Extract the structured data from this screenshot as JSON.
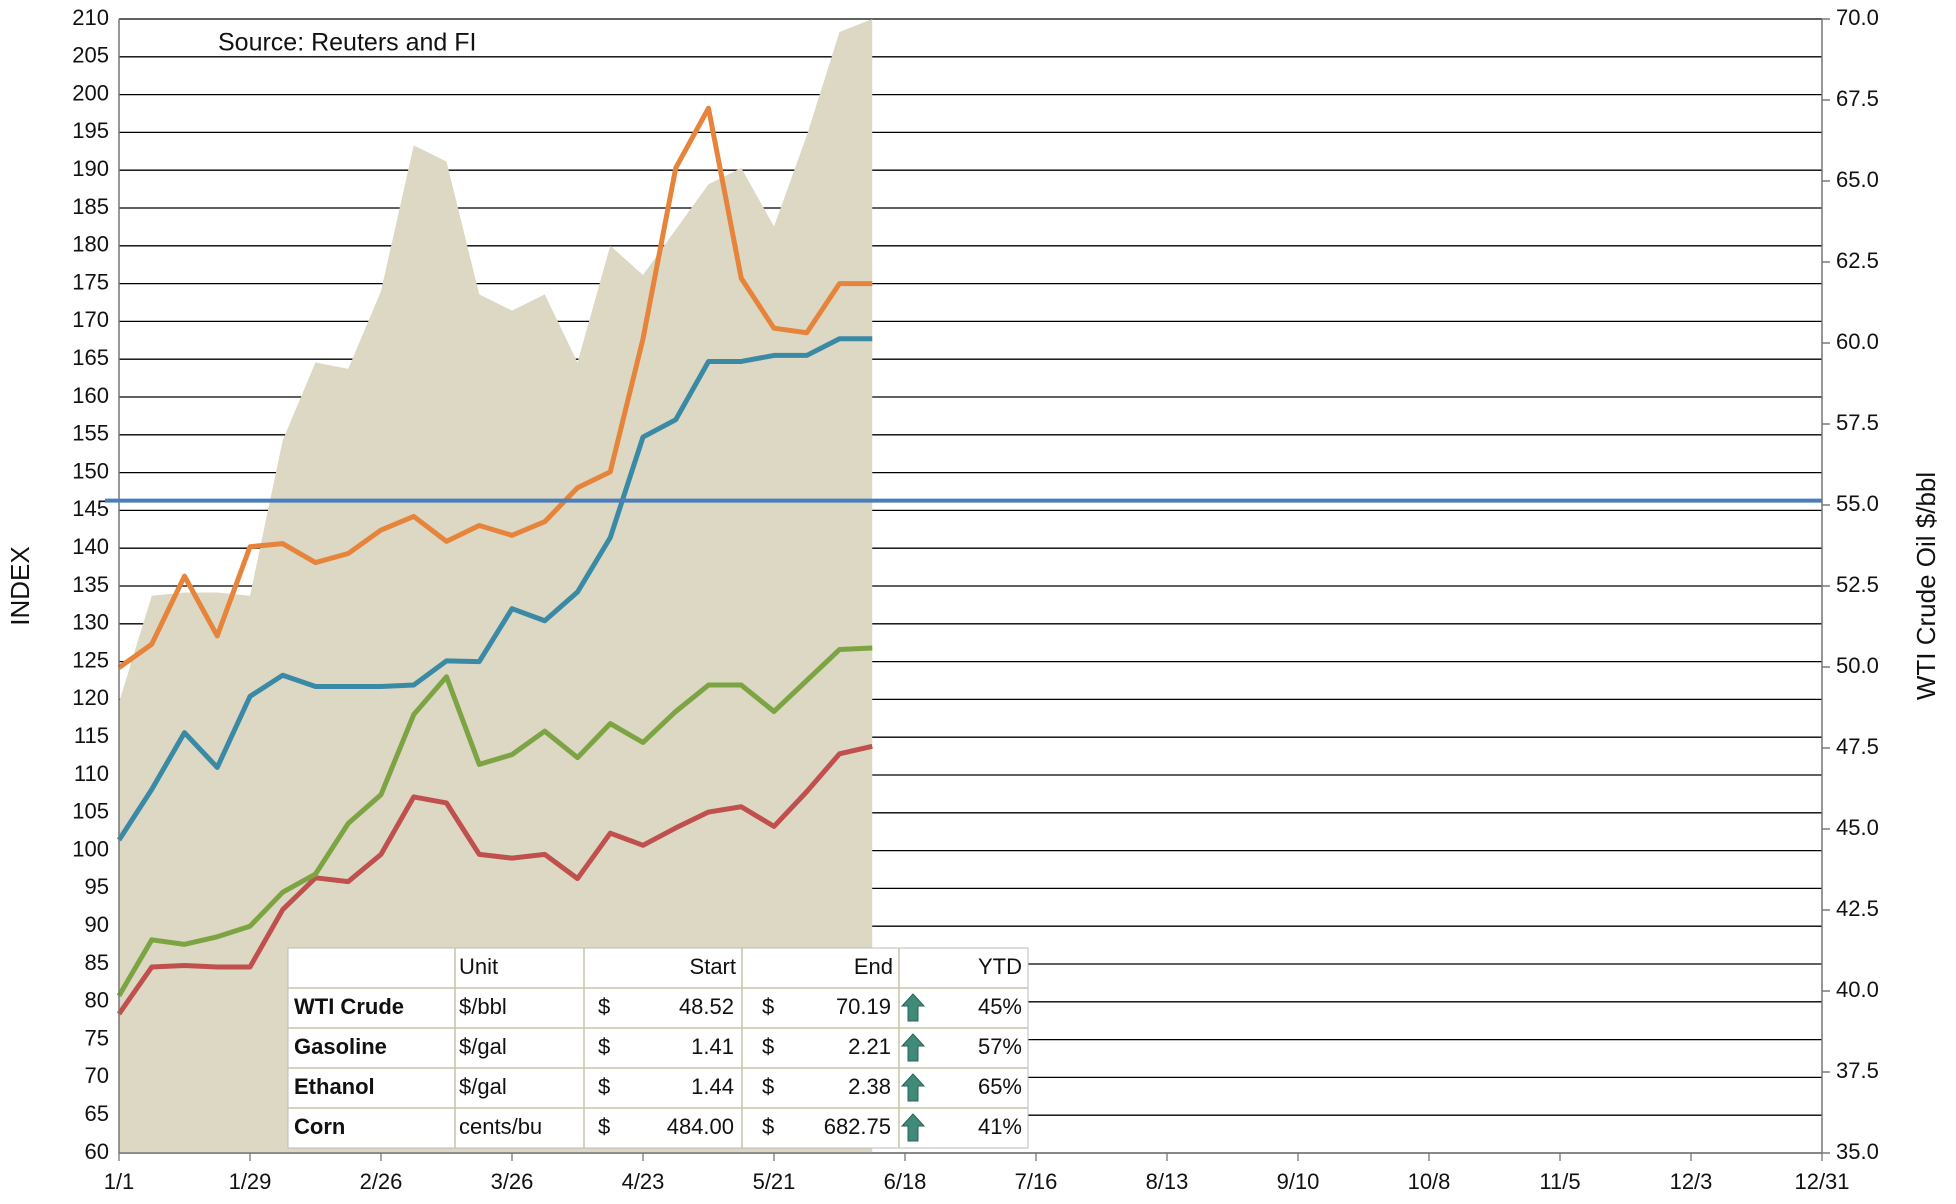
{
  "chart_data": {
    "type": "line",
    "annotation": "Source: Reuters and FI",
    "ylabel": "INDEX",
    "y2label": "WTI Crude Oil $/bbl",
    "categories": [
      "1/1",
      null,
      null,
      null,
      "1/29",
      null,
      null,
      null,
      "2/26",
      null,
      null,
      null,
      "3/26",
      null,
      null,
      null,
      "4/23",
      null,
      null,
      null,
      "5/21",
      null,
      null,
      null,
      "6/18",
      null,
      null,
      null,
      "7/16",
      null,
      null,
      null,
      "8/13",
      null,
      null,
      null,
      "9/10",
      null,
      null,
      null,
      "10/8",
      null,
      null,
      null,
      "11/5",
      null,
      null,
      null,
      "12/3",
      null,
      null,
      null,
      "12/31"
    ],
    "ylim": [
      60,
      210
    ],
    "yticks": [
      60,
      65,
      70,
      75,
      80,
      85,
      90,
      95,
      100,
      105,
      110,
      115,
      120,
      125,
      130,
      135,
      140,
      145,
      150,
      155,
      160,
      165,
      170,
      175,
      180,
      185,
      190,
      195,
      200,
      205,
      210
    ],
    "y2lim": [
      35,
      70
    ],
    "y2ticks": [
      {
        "value": 35,
        "label": "35.0"
      },
      37.5,
      {
        "value": 40,
        "label": "40.0"
      },
      42.5,
      {
        "value": 45,
        "label": "45.0"
      },
      47.5,
      {
        "value": 50,
        "label": "50.0"
      },
      52.5,
      {
        "value": 55,
        "label": "55.0"
      },
      57.5,
      {
        "value": 60,
        "label": "60.0"
      },
      62.5,
      {
        "value": 65,
        "label": "65.0"
      },
      67.5,
      {
        "value": 70,
        "label": "70.0"
      }
    ],
    "grid": true,
    "area": {
      "color": "#dcd8c4",
      "axis": "y2",
      "values": [
        48.9,
        52.2,
        52.3,
        52.3,
        52.2,
        57.0,
        59.4,
        59.2,
        61.6,
        66.1,
        65.6,
        61.5,
        61.0,
        61.5,
        59.4,
        63.0,
        62.1,
        63.5,
        64.9,
        65.4,
        63.6,
        66.4,
        69.6,
        70.0,
        null,
        null,
        null,
        null,
        null,
        null,
        null,
        null,
        null,
        null,
        null,
        null,
        null,
        null,
        null,
        null,
        null,
        null,
        null,
        null,
        null,
        null,
        null,
        null,
        null,
        null,
        null,
        null,
        null
      ]
    },
    "hline": {
      "value": 146.3,
      "color": "#4a7ebb"
    },
    "series": [
      {
        "name": "WTI Crude",
        "color": "#c0504d",
        "values": [
          78.4,
          84.6,
          84.8,
          84.6,
          84.6,
          92.2,
          96.4,
          95.9,
          99.5,
          107.1,
          106.3,
          99.5,
          99.0,
          99.5,
          96.3,
          102.3,
          100.7,
          103.0,
          105.1,
          105.8,
          103.2,
          107.8,
          112.8,
          113.8,
          null,
          null,
          null,
          null,
          null,
          null,
          null,
          null,
          null,
          null,
          null,
          null,
          null,
          null,
          null,
          null,
          null,
          null,
          null,
          null,
          null,
          null,
          null,
          null,
          null,
          null,
          null,
          null,
          null
        ]
      },
      {
        "name": "Gasoline",
        "color": "#7da443",
        "values": [
          80.8,
          88.2,
          87.6,
          88.6,
          90.0,
          94.5,
          96.9,
          103.6,
          107.4,
          118.0,
          123.0,
          111.4,
          112.7,
          115.8,
          112.3,
          116.8,
          114.3,
          118.4,
          121.9,
          121.9,
          118.4,
          122.5,
          126.6,
          126.8,
          null,
          null,
          null,
          null,
          null,
          null,
          null,
          null,
          null,
          null,
          null,
          null,
          null,
          null,
          null,
          null,
          null,
          null,
          null,
          null,
          null,
          null,
          null,
          null,
          null,
          null,
          null,
          null,
          null
        ]
      },
      {
        "name": "Ethanol",
        "color": "#3a8aa6",
        "values": [
          101.4,
          108.1,
          115.6,
          111.0,
          120.4,
          123.2,
          121.7,
          121.7,
          121.7,
          121.9,
          125.1,
          125.0,
          132.0,
          130.4,
          134.2,
          141.4,
          154.7,
          157.0,
          164.7,
          164.7,
          165.5,
          165.5,
          167.7,
          167.7,
          null,
          null,
          null,
          null,
          null,
          null,
          null,
          null,
          null,
          null,
          null,
          null,
          null,
          null,
          null,
          null,
          null,
          null,
          null,
          null,
          null,
          null,
          null,
          null,
          null,
          null,
          null,
          null,
          null
        ]
      },
      {
        "name": "Corn",
        "color": "#e5843a",
        "values": [
          124.2,
          127.3,
          136.3,
          128.4,
          140.2,
          140.6,
          138.1,
          139.3,
          142.4,
          144.2,
          140.9,
          143.0,
          141.7,
          143.5,
          148.0,
          150.1,
          167.7,
          190.3,
          198.2,
          175.7,
          169.1,
          168.5,
          175.0,
          175.0,
          null,
          null,
          null,
          null,
          null,
          null,
          null,
          null,
          null,
          null,
          null,
          null,
          null,
          null,
          null,
          null,
          null,
          null,
          null,
          null,
          null,
          null,
          null,
          null,
          null,
          null,
          null,
          null,
          null
        ]
      }
    ],
    "table": {
      "header": [
        "Unit",
        "Start",
        "End",
        "YTD"
      ],
      "rows": [
        [
          "$/bbl",
          "$",
          "48.52",
          "$",
          "70.19",
          "45%"
        ],
        [
          "$/gal",
          "$",
          "1.41",
          "$",
          "2.21",
          "57%"
        ],
        [
          "$/gal",
          "$",
          "1.44",
          "$",
          "2.38",
          "65%"
        ],
        [
          "cents/bu",
          "$",
          "484.00",
          "$",
          "682.75",
          "41%"
        ]
      ]
    }
  }
}
